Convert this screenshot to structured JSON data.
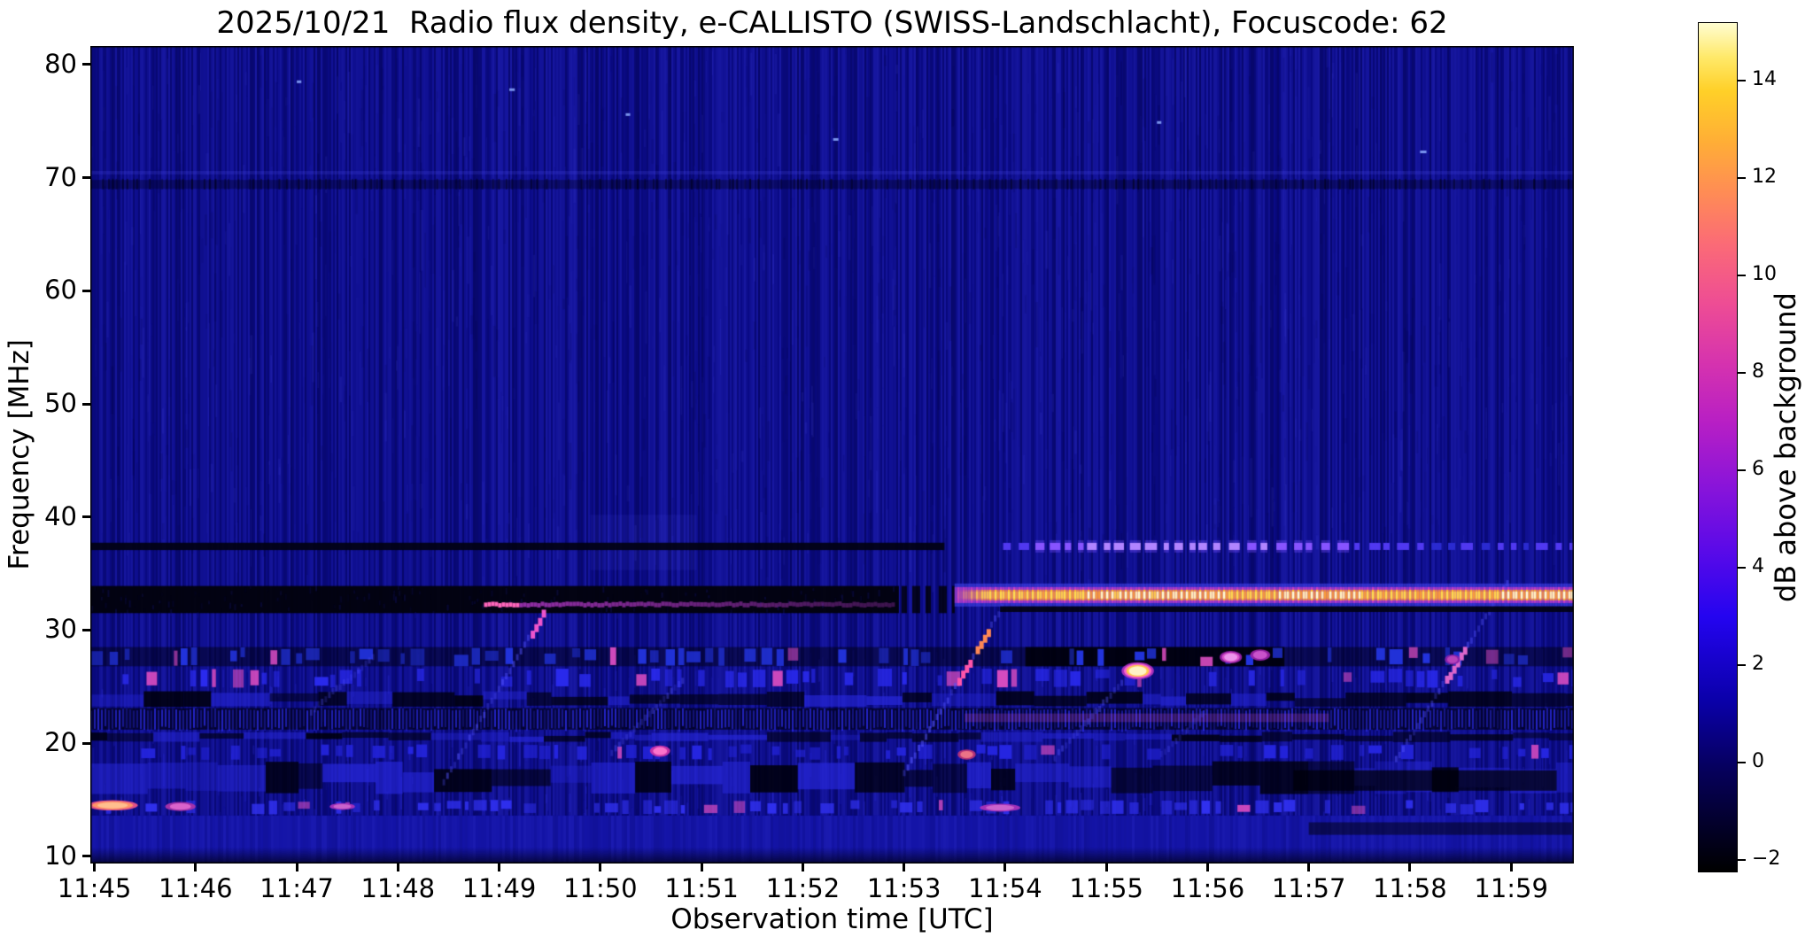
{
  "chart_data": {
    "type": "heatmap",
    "subtype": "radio-spectrogram",
    "title": "2025/10/21  Radio flux density, e-CALLISTO (SWISS-Landschlacht), Focuscode: 62",
    "xlabel": "Observation time [UTC]",
    "ylabel": "Frequency [MHz]",
    "grid": false,
    "x_range_minutes_after_11": [
      44.96,
      59.62
    ],
    "y_range_mhz": [
      9.36,
      81.64
    ],
    "x_ticks": [
      {
        "label": "11:45",
        "min": 45
      },
      {
        "label": "11:46",
        "min": 46
      },
      {
        "label": "11:47",
        "min": 47
      },
      {
        "label": "11:48",
        "min": 48
      },
      {
        "label": "11:49",
        "min": 49
      },
      {
        "label": "11:50",
        "min": 50
      },
      {
        "label": "11:51",
        "min": 51
      },
      {
        "label": "11:52",
        "min": 52
      },
      {
        "label": "11:53",
        "min": 53
      },
      {
        "label": "11:54",
        "min": 54
      },
      {
        "label": "11:55",
        "min": 55
      },
      {
        "label": "11:56",
        "min": 56
      },
      {
        "label": "11:57",
        "min": 57
      },
      {
        "label": "11:58",
        "min": 58
      },
      {
        "label": "11:59",
        "min": 59
      }
    ],
    "y_ticks": [
      {
        "label": "80",
        "mhz": 80
      },
      {
        "label": "70",
        "mhz": 70
      },
      {
        "label": "60",
        "mhz": 60
      },
      {
        "label": "50",
        "mhz": 50
      },
      {
        "label": "40",
        "mhz": 40
      },
      {
        "label": "30",
        "mhz": 30
      },
      {
        "label": "20",
        "mhz": 20
      },
      {
        "label": "10",
        "mhz": 10
      }
    ],
    "colorbar": {
      "label": "dB above background",
      "range_db": [
        -2.25,
        15.2
      ],
      "ticks": [
        {
          "label": "14",
          "db": 14
        },
        {
          "label": "12",
          "db": 12
        },
        {
          "label": "10",
          "db": 10
        },
        {
          "label": "8",
          "db": 8
        },
        {
          "label": "6",
          "db": 6
        },
        {
          "label": "4",
          "db": 4
        },
        {
          "label": "2",
          "db": 2
        },
        {
          "label": "0",
          "db": 0
        },
        {
          "label": "−2",
          "db": -2
        }
      ],
      "stops": [
        [
          "#000000",
          0
        ],
        [
          "#03002e",
          0.06
        ],
        [
          "#06005c",
          0.12
        ],
        [
          "#0a00a8",
          0.2
        ],
        [
          "#2404f0",
          0.3
        ],
        [
          "#5b0ae8",
          0.38
        ],
        [
          "#8d15d8",
          0.46
        ],
        [
          "#b81fc4",
          0.53
        ],
        [
          "#d633ae",
          0.6
        ],
        [
          "#ee4d94",
          0.67
        ],
        [
          "#fb6b76",
          0.74
        ],
        [
          "#ff8c55",
          0.8
        ],
        [
          "#ffae36",
          0.86
        ],
        [
          "#ffd028",
          0.92
        ],
        [
          "#ffe96a",
          0.96
        ],
        [
          "#fffdd0",
          1
        ]
      ]
    },
    "background_color": "#0b0b87",
    "features": [
      {
        "kind": "dashes",
        "f0": 26.8,
        "f1": 28.5,
        "t0": 44.96,
        "t1": 59.62,
        "backdrop": 0.5,
        "dark_seg": [
          54.2,
          56.76
        ],
        "accent": "#2233dd",
        "density": 0.45,
        "pink": 0.1
      },
      {
        "kind": "dashes",
        "f0": 24.9,
        "f1": 26.6,
        "t0": 44.96,
        "t1": 59.62,
        "accent": "#2a2aee",
        "density": 0.6,
        "pink": 0.12,
        "cluster": [
          53.3,
          54.6
        ]
      },
      {
        "kind": "patches",
        "f0": 23.2,
        "f1": 24.6,
        "t0": 44.96,
        "t1": 59.62,
        "dark": 0.5
      },
      {
        "kind": "comb",
        "f0": 21.2,
        "f1": 23.1,
        "t0": 44.96,
        "t1": 59.62,
        "tint": [
          53.6,
          57.2
        ]
      },
      {
        "kind": "patches",
        "f0": 20.1,
        "f1": 21.0,
        "t0": 44.96,
        "t1": 59.62,
        "dark": 0.6
      },
      {
        "kind": "dashes",
        "f0": 18.5,
        "f1": 19.9,
        "t0": 44.96,
        "t1": 59.62,
        "accent": "#2525e0",
        "density": 0.55,
        "pink": 0.05
      },
      {
        "kind": "patches",
        "f0": 15.5,
        "f1": 18.4,
        "t0": 44.96,
        "t1": 59.62,
        "dark": 0.55
      },
      {
        "kind": "dashes",
        "f0": 13.7,
        "f1": 15.0,
        "t0": 44.96,
        "t1": 59.62,
        "accent": "#3030ee",
        "density": 0.65,
        "pink": 0.07
      },
      {
        "kind": "uniform",
        "f0": 9.36,
        "f1": 13.6,
        "t0": 44.96,
        "t1": 59.62,
        "color": "#1414a6"
      },
      {
        "kind": "fade_bottom",
        "f0": 9.36,
        "f1": 10.8,
        "t0": 44.96,
        "t1": 59.62
      },
      {
        "kind": "dark_row",
        "f0": 15.8,
        "f1": 17.6,
        "t0": 56.85,
        "t1": 59.45,
        "alpha": 0.72
      },
      {
        "kind": "dark_row",
        "f0": 11.9,
        "f1": 13.0,
        "t0": 57.0,
        "t1": 59.6,
        "alpha": 0.5
      },
      {
        "kind": "hline_dark",
        "f": 37.4,
        "h": 0.65,
        "t0": 44.96,
        "t1": 53.4,
        "alpha": 0.92
      },
      {
        "kind": "band_dark",
        "f0": 31.5,
        "f1": 33.9,
        "t0": 44.96,
        "t1": 52.95,
        "fade": 0.55
      },
      {
        "kind": "hline_thin",
        "f": 32.3,
        "t0": 48.85,
        "t1": 52.9
      },
      {
        "kind": "trace",
        "t0": 48.44,
        "f0": 16.8,
        "t1": 49.42,
        "f1": 31.7,
        "alpha": 0.5,
        "brights": [
          [
            0.86,
            1.0,
            "#ee55cc"
          ]
        ]
      },
      {
        "kind": "trace",
        "t0": 50.1,
        "f0": 19.5,
        "t1": 50.8,
        "f1": 25.8,
        "alpha": 0.35
      },
      {
        "kind": "trace",
        "t0": 52.99,
        "f0": 17.6,
        "t1": 53.96,
        "f1": 32.3,
        "alpha": 0.55,
        "brights": [
          [
            0.55,
            0.68,
            "#ff55aa"
          ],
          [
            0.72,
            0.86,
            "#ff8855"
          ]
        ]
      },
      {
        "kind": "trace",
        "t0": 54.48,
        "f0": 19.0,
        "t1": 55.14,
        "f1": 25.6,
        "alpha": 0.4
      },
      {
        "kind": "trace",
        "t0": 57.85,
        "f0": 18.8,
        "t1": 58.95,
        "f1": 34.5,
        "alpha": 0.5,
        "brights": [
          [
            0.45,
            0.62,
            "#dd66cc"
          ]
        ]
      },
      {
        "kind": "trace",
        "t0": 47.13,
        "f0": 23.1,
        "t1": 47.74,
        "f1": 27.8,
        "alpha": 0.3
      },
      {
        "kind": "trace",
        "t0": 55.53,
        "f0": 19.2,
        "t1": 55.97,
        "f1": 23.1,
        "alpha": 0.25
      },
      {
        "kind": "band_bright",
        "f": 33.1,
        "t0": 53.5,
        "t1": 59.62,
        "hot": [
          [
            54.8,
            56.2
          ],
          [
            56.7,
            57.5
          ],
          [
            58.9,
            59.62
          ]
        ]
      },
      {
        "kind": "hline_dark",
        "f": 31.85,
        "h": 0.5,
        "t0": 53.95,
        "t1": 59.62,
        "alpha": 0.9
      },
      {
        "kind": "hline_dashed",
        "f": 37.4,
        "t0": 53.98,
        "t1": 59.62,
        "colors": [
          "#2a2ad0",
          "#5038f0",
          "#9055ff",
          "#d0a0ff"
        ]
      },
      {
        "kind": "blob",
        "t": 55.31,
        "f": 26.4,
        "w": 0.32,
        "hm": 1.5,
        "colors": [
          "#b033c0",
          "#ff66cc",
          "#ffcc44",
          "#fff6cc"
        ]
      },
      {
        "kind": "blob",
        "t": 56.23,
        "f": 27.6,
        "w": 0.22,
        "hm": 1.1,
        "colors": [
          "#9922aa",
          "#dd55cc",
          "#ee99ee"
        ]
      },
      {
        "kind": "blob",
        "t": 56.52,
        "f": 27.8,
        "w": 0.2,
        "hm": 1.0,
        "colors": [
          "#9922aa",
          "#cc55cc"
        ]
      },
      {
        "kind": "blob",
        "t": 58.42,
        "f": 27.4,
        "w": 0.15,
        "hm": 0.9,
        "colors": [
          "#8822aa",
          "#bb44bb"
        ]
      },
      {
        "kind": "blob",
        "t": 50.59,
        "f": 19.3,
        "w": 0.2,
        "hm": 1.0,
        "colors": [
          "#cc33aa",
          "#ff77cc"
        ]
      },
      {
        "kind": "blob",
        "t": 53.62,
        "f": 19.0,
        "w": 0.18,
        "hm": 0.9,
        "colors": [
          "#bb3377",
          "#ee7788"
        ]
      },
      {
        "kind": "blob",
        "t": 45.18,
        "f": 14.5,
        "w": 0.5,
        "hm": 0.9,
        "colors": [
          "#ee5588",
          "#ff9966",
          "#ffc090"
        ]
      },
      {
        "kind": "blob",
        "t": 45.85,
        "f": 14.4,
        "w": 0.3,
        "hm": 0.8,
        "colors": [
          "#aa33aa",
          "#dd66cc"
        ]
      },
      {
        "kind": "blob",
        "t": 53.95,
        "f": 14.3,
        "w": 0.4,
        "hm": 0.7,
        "colors": [
          "#aa33bb",
          "#cc66cc"
        ]
      },
      {
        "kind": "blob",
        "t": 47.45,
        "f": 14.4,
        "w": 0.25,
        "hm": 0.6,
        "colors": [
          "#aa33bb",
          "#cc66cc"
        ]
      }
    ]
  }
}
